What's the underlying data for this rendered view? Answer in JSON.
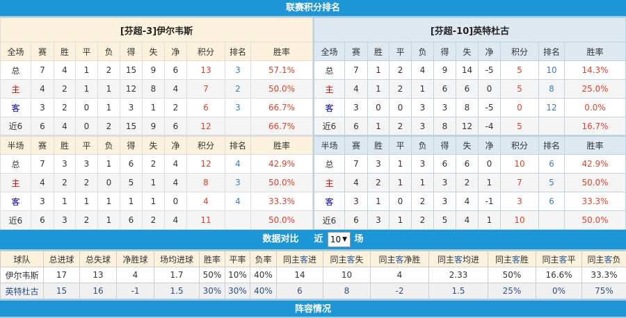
{
  "title": "联赛积分排名",
  "teams": [
    {
      "name": "[芬超-3]伊尔韦斯",
      "full": {
        "header": [
          "全场",
          "赛",
          "胜",
          "平",
          "负",
          "得",
          "失",
          "净",
          "积分",
          "排名",
          "胜率"
        ],
        "rows": [
          [
            "总",
            "7",
            "4",
            "1",
            "2",
            "15",
            "9",
            "6",
            "13",
            "3",
            "57.1%"
          ],
          [
            "主",
            "4",
            "2",
            "1",
            "1",
            "12",
            "8",
            "4",
            "7",
            "2",
            "50.0%"
          ],
          [
            "客",
            "3",
            "2",
            "0",
            "1",
            "3",
            "1",
            "2",
            "6",
            "3",
            "66.7%"
          ],
          [
            "近6",
            "6",
            "4",
            "0",
            "2",
            "15",
            "9",
            "6",
            "12",
            "",
            "66.7%"
          ]
        ]
      },
      "half": {
        "header": [
          "半场",
          "赛",
          "胜",
          "平",
          "负",
          "得",
          "失",
          "净",
          "积分",
          "排名",
          "胜率"
        ],
        "rows": [
          [
            "总",
            "7",
            "3",
            "3",
            "1",
            "6",
            "2",
            "4",
            "12",
            "4",
            "42.9%"
          ],
          [
            "主",
            "4",
            "2",
            "2",
            "0",
            "5",
            "1",
            "4",
            "8",
            "3",
            "50.0%"
          ],
          [
            "客",
            "3",
            "1",
            "1",
            "1",
            "1",
            "1",
            "0",
            "4",
            "4",
            "33.3%"
          ],
          [
            "近6",
            "6",
            "3",
            "2",
            "1",
            "6",
            "2",
            "4",
            "11",
            "",
            "50.0%"
          ]
        ]
      }
    },
    {
      "name": "[芬超-10]英特杜古",
      "full": {
        "header": [
          "全场",
          "赛",
          "胜",
          "平",
          "负",
          "得",
          "失",
          "净",
          "积分",
          "排名",
          "胜率"
        ],
        "rows": [
          [
            "总",
            "7",
            "1",
            "2",
            "4",
            "9",
            "14",
            "-5",
            "5",
            "10",
            "14.3%"
          ],
          [
            "主",
            "4",
            "1",
            "2",
            "1",
            "6",
            "6",
            "0",
            "5",
            "8",
            "25.0%"
          ],
          [
            "客",
            "3",
            "0",
            "0",
            "3",
            "3",
            "8",
            "-5",
            "0",
            "12",
            "0.0%"
          ],
          [
            "近6",
            "6",
            "1",
            "2",
            "3",
            "8",
            "12",
            "-4",
            "5",
            "",
            "16.7%"
          ]
        ]
      },
      "half": {
        "header": [
          "半场",
          "赛",
          "胜",
          "平",
          "负",
          "得",
          "失",
          "净",
          "积分",
          "排名",
          "胜率"
        ],
        "rows": [
          [
            "总",
            "7",
            "3",
            "1",
            "3",
            "6",
            "6",
            "0",
            "10",
            "6",
            "42.9%"
          ],
          [
            "主",
            "4",
            "2",
            "1",
            "1",
            "3",
            "2",
            "1",
            "7",
            "5",
            "50.0%"
          ],
          [
            "客",
            "3",
            "1",
            "0",
            "2",
            "3",
            "4",
            "-1",
            "3",
            "6",
            "33.3%"
          ],
          [
            "近6",
            "6",
            "3",
            "1",
            "2",
            "5",
            "4",
            "1",
            "10",
            "",
            "50.0%"
          ]
        ]
      }
    }
  ],
  "compare": {
    "title": "数据对比",
    "near": "近",
    "count": "10",
    "unit": "场",
    "header": [
      "球队",
      "总进球",
      "总失球",
      "净胜球",
      "场均进球",
      "胜率",
      "平率",
      "负率",
      "同主客进",
      "同主客失",
      "同主客净胜",
      "同主客均进",
      "同主客胜",
      "同主客平",
      "同主客负"
    ],
    "rows": [
      [
        "伊尔韦斯",
        "17",
        "13",
        "4",
        "1.7",
        "50%",
        "10%",
        "40%",
        "14",
        "10",
        "4",
        "2.33",
        "50%",
        "16.6%",
        "33.3%"
      ],
      [
        "英特杜古",
        "15",
        "16",
        "-1",
        "1.5",
        "30%",
        "30%",
        "40%",
        "6",
        "8",
        "-2",
        "1.5",
        "25%",
        "0%",
        "75%"
      ]
    ]
  },
  "lineup_title": "阵容情况"
}
